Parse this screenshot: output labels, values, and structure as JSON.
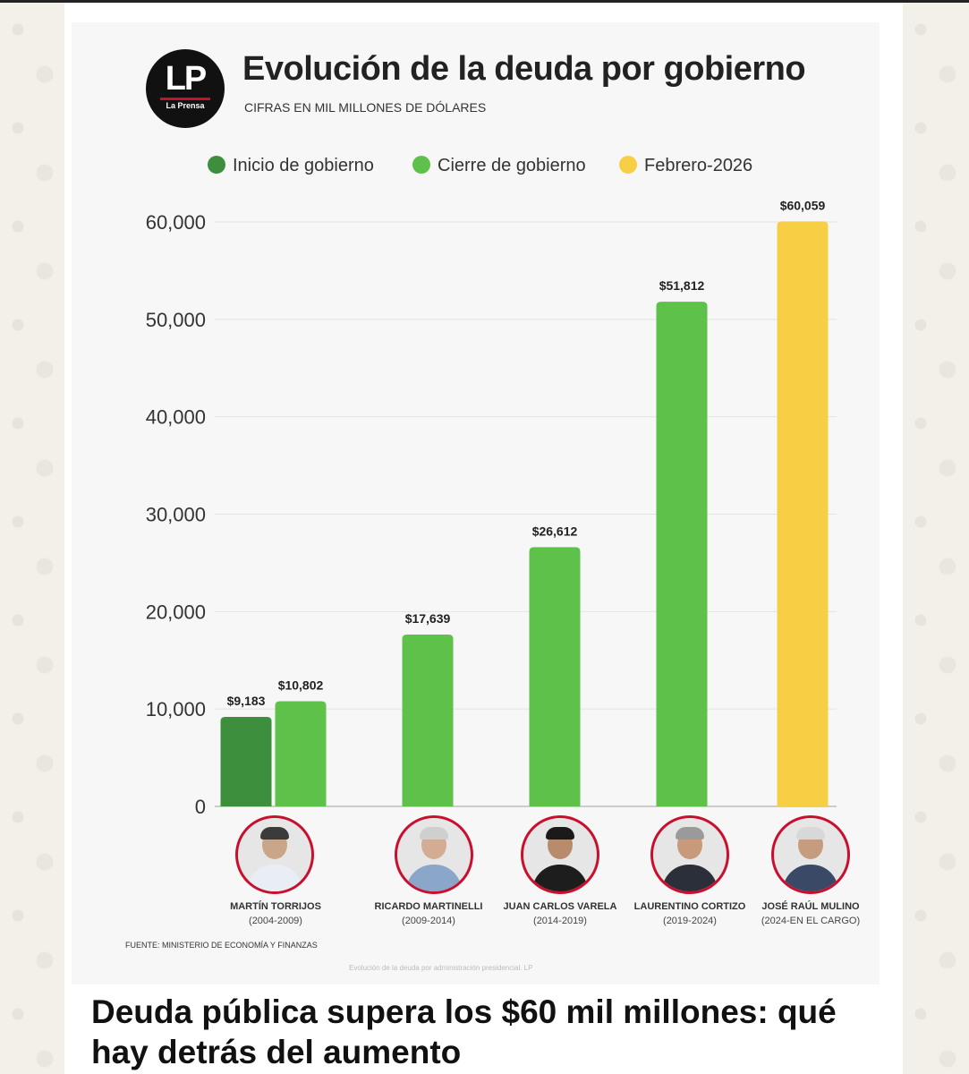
{
  "header": {
    "logo_text": "LP",
    "logo_subtext": "La Prensa",
    "title": "Evolución de la deuda por gobierno",
    "subtitle": "CIFRAS EN MIL MILLONES DE DÓLARES"
  },
  "legend": [
    {
      "label": "Inicio de gobierno",
      "color": "#3d8f3d"
    },
    {
      "label": "Cierre de gobierno",
      "color": "#5ec24a"
    },
    {
      "label": "Febrero-2026",
      "color": "#f6cf45"
    }
  ],
  "chart_data": {
    "type": "bar",
    "title": "Evolución de la deuda por gobierno",
    "subtitle": "CIFRAS EN MIL MILLONES DE DÓLARES",
    "ylim": [
      0,
      60000
    ],
    "yticks": [
      "0",
      "10,000",
      "20,000",
      "30,000",
      "40,000",
      "50,000",
      "60,000"
    ],
    "grid": true,
    "legend_position": "top",
    "bars": [
      {
        "series": "Inicio de gobierno",
        "government": "MARTÍN TORRIJOS",
        "value": 9183,
        "label": "$9,183",
        "color": "#3d8f3d"
      },
      {
        "series": "Cierre de gobierno",
        "government": "MARTÍN TORRIJOS",
        "value": 10802,
        "label": "$10,802",
        "color": "#5ec24a"
      },
      {
        "series": "Cierre de gobierno",
        "government": "RICARDO MARTINELLI",
        "value": 17639,
        "label": "$17,639",
        "color": "#5ec24a"
      },
      {
        "series": "Cierre de gobierno",
        "government": "JUAN CARLOS VARELA",
        "value": 26612,
        "label": "$26,612",
        "color": "#5ec24a"
      },
      {
        "series": "Cierre de gobierno",
        "government": "LAURENTINO CORTIZO",
        "value": 51812,
        "label": "$51,812",
        "color": "#5ec24a"
      },
      {
        "series": "Febrero-2026",
        "government": "JOSÉ RAÚL MULINO",
        "value": 60059,
        "label": "$60,059",
        "color": "#f6cf45"
      }
    ]
  },
  "governments": [
    {
      "name": "MARTÍN TORRIJOS",
      "period": "(2004-2009)"
    },
    {
      "name": "RICARDO MARTINELLI",
      "period": "(2009-2014)"
    },
    {
      "name": "JUAN CARLOS VARELA",
      "period": "(2014-2019)"
    },
    {
      "name": "LAURENTINO CORTIZO",
      "period": "(2019-2024)"
    },
    {
      "name": "JOSÉ RAÚL MULINO",
      "period": "(2024-EN EL CARGO)"
    }
  ],
  "source": "FUENTE: MINISTERIO DE ECONOMÍA Y FINANZAS",
  "image_caption": "Evolución de la deuda por administración presidencial. LP",
  "headline": "Deuda pública supera los $60 mil millones: qué hay detrás del aumento"
}
